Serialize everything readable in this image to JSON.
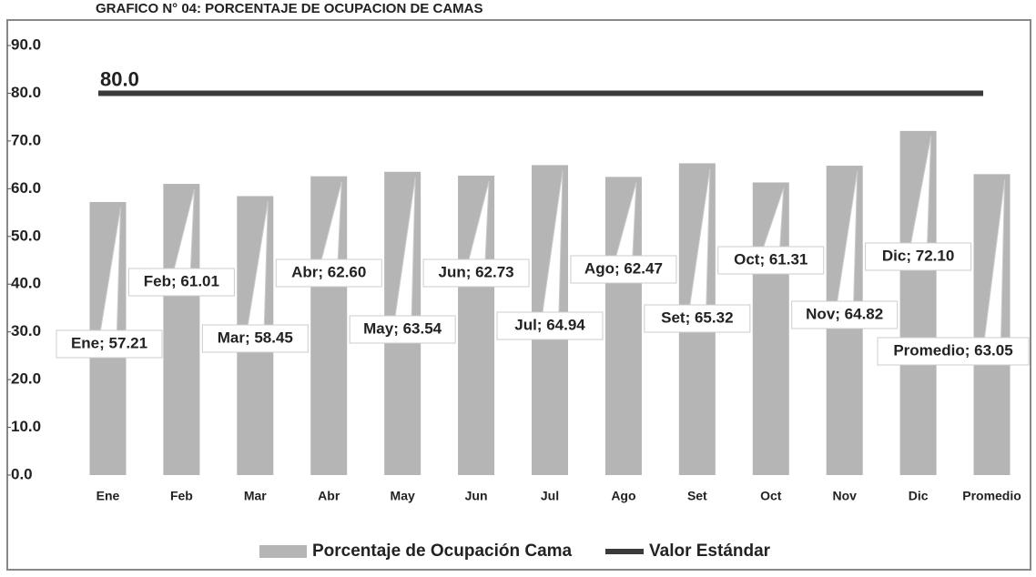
{
  "chart_data": {
    "type": "bar",
    "title": "GRAFICO N° 04: PORCENTAJE DE OCUPACION DE CAMAS",
    "categories": [
      "Ene",
      "Feb",
      "Mar",
      "Abr",
      "May",
      "Jun",
      "Jul",
      "Ago",
      "Set",
      "Oct",
      "Nov",
      "Dic",
      "Promedio"
    ],
    "series": [
      {
        "name": "Porcentaje de Ocupación Cama",
        "color": "#b5b5b5",
        "type": "bar",
        "values": [
          57.21,
          61.01,
          58.45,
          62.6,
          63.54,
          62.73,
          64.94,
          62.47,
          65.32,
          61.31,
          64.82,
          72.1,
          63.05
        ],
        "value_labels": [
          "Ene; 57.21",
          "Feb; 61.01",
          "Mar; 58.45",
          "Abr; 62.60",
          "May; 63.54",
          "Jun; 62.73",
          "Jul; 64.94",
          "Ago; 62.47",
          "Set; 65.32",
          "Oct; 61.31",
          "Nov; 64.82",
          "Dic; 72.10",
          "Promedio; 63.05"
        ]
      },
      {
        "name": "Valor Estándar",
        "color": "#3a3a3a",
        "type": "line",
        "values": [
          80,
          80,
          80,
          80,
          80,
          80,
          80,
          80,
          80,
          80,
          80,
          80,
          80
        ],
        "value_labels": [
          "80.0",
          null,
          null,
          null,
          null,
          null,
          null,
          null,
          null,
          null,
          null,
          null,
          null
        ]
      }
    ],
    "ylim": [
      0,
      90
    ],
    "yticks": [
      {
        "value": 0,
        "label": "0.0"
      },
      {
        "value": 10,
        "label": "10.0"
      },
      {
        "value": 20,
        "label": "20.0"
      },
      {
        "value": 30,
        "label": "30.0"
      },
      {
        "value": 40,
        "label": "40.0"
      },
      {
        "value": 50,
        "label": "50.0"
      },
      {
        "value": 60,
        "label": "60.0"
      },
      {
        "value": 70,
        "label": "70.0"
      },
      {
        "value": 80,
        "label": "80.0"
      },
      {
        "value": 90,
        "label": "90.0"
      }
    ],
    "grid": false,
    "legend": "bottom"
  }
}
